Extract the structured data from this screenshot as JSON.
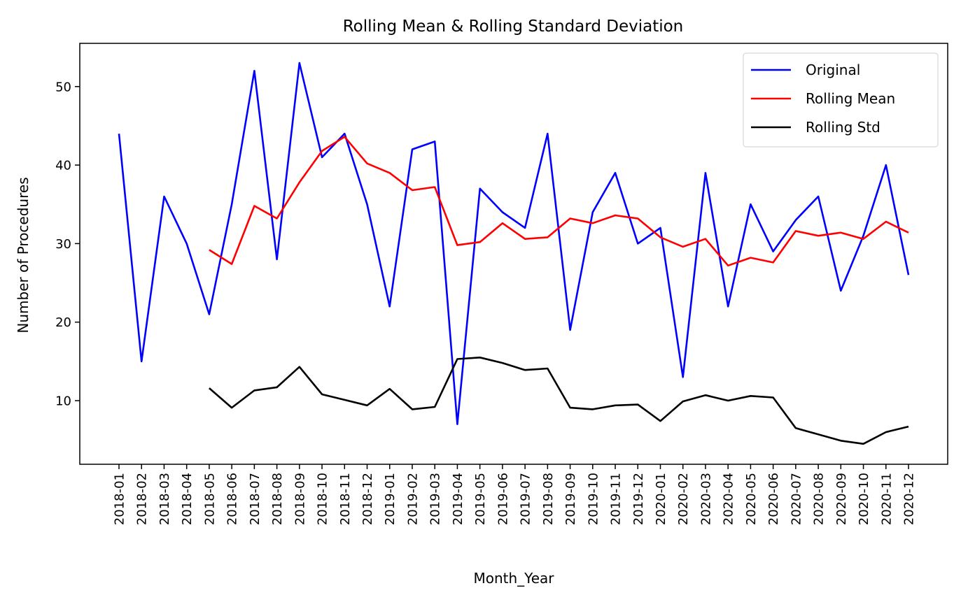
{
  "chart_data": {
    "type": "line",
    "title": "Rolling Mean & Rolling Standard Deviation",
    "xlabel": "Month_Year",
    "ylabel": "Number of Procedures",
    "ylim": [
      1.9,
      55.5
    ],
    "yticks": [
      10,
      20,
      30,
      40,
      50
    ],
    "legend_position": "top-right",
    "grid": false,
    "categories": [
      "2018-01",
      "2018-02",
      "2018-03",
      "2018-04",
      "2018-05",
      "2018-06",
      "2018-07",
      "2018-08",
      "2018-09",
      "2018-10",
      "2018-11",
      "2018-12",
      "2019-01",
      "2019-02",
      "2019-03",
      "2019-04",
      "2019-05",
      "2019-06",
      "2019-07",
      "2019-08",
      "2019-09",
      "2019-10",
      "2019-11",
      "2019-12",
      "2020-01",
      "2020-02",
      "2020-03",
      "2020-04",
      "2020-05",
      "2020-06",
      "2020-07",
      "2020-08",
      "2020-09",
      "2020-10",
      "2020-11",
      "2020-12"
    ],
    "series": [
      {
        "name": "Original",
        "color": "#0000ff",
        "values": [
          44,
          15,
          36,
          30,
          21,
          35,
          52,
          28,
          53,
          41,
          44,
          35,
          22,
          42,
          43,
          7,
          37,
          34,
          32,
          44,
          19,
          34,
          39,
          30,
          32,
          13,
          39,
          22,
          35,
          29,
          33,
          36,
          24,
          31,
          40,
          26
        ]
      },
      {
        "name": "Rolling Mean",
        "color": "#ff0000",
        "values": [
          null,
          null,
          null,
          null,
          29.2,
          27.4,
          34.8,
          33.2,
          37.8,
          41.8,
          43.6,
          40.2,
          39.0,
          36.8,
          37.2,
          29.8,
          30.2,
          32.6,
          30.6,
          30.8,
          33.2,
          32.6,
          33.6,
          33.2,
          30.8,
          29.6,
          30.6,
          27.2,
          28.2,
          27.6,
          31.6,
          31.0,
          31.4,
          30.6,
          32.8,
          31.4
        ]
      },
      {
        "name": "Rolling Std",
        "color": "#000000",
        "values": [
          null,
          null,
          null,
          null,
          11.6,
          9.1,
          11.3,
          11.7,
          14.3,
          10.8,
          10.1,
          9.4,
          11.5,
          8.9,
          9.2,
          15.3,
          15.5,
          14.8,
          13.9,
          14.1,
          9.1,
          8.9,
          9.4,
          9.5,
          7.4,
          9.9,
          10.7,
          10.0,
          10.6,
          10.4,
          6.5,
          5.7,
          4.9,
          4.5,
          6.0,
          6.7
        ]
      }
    ]
  }
}
